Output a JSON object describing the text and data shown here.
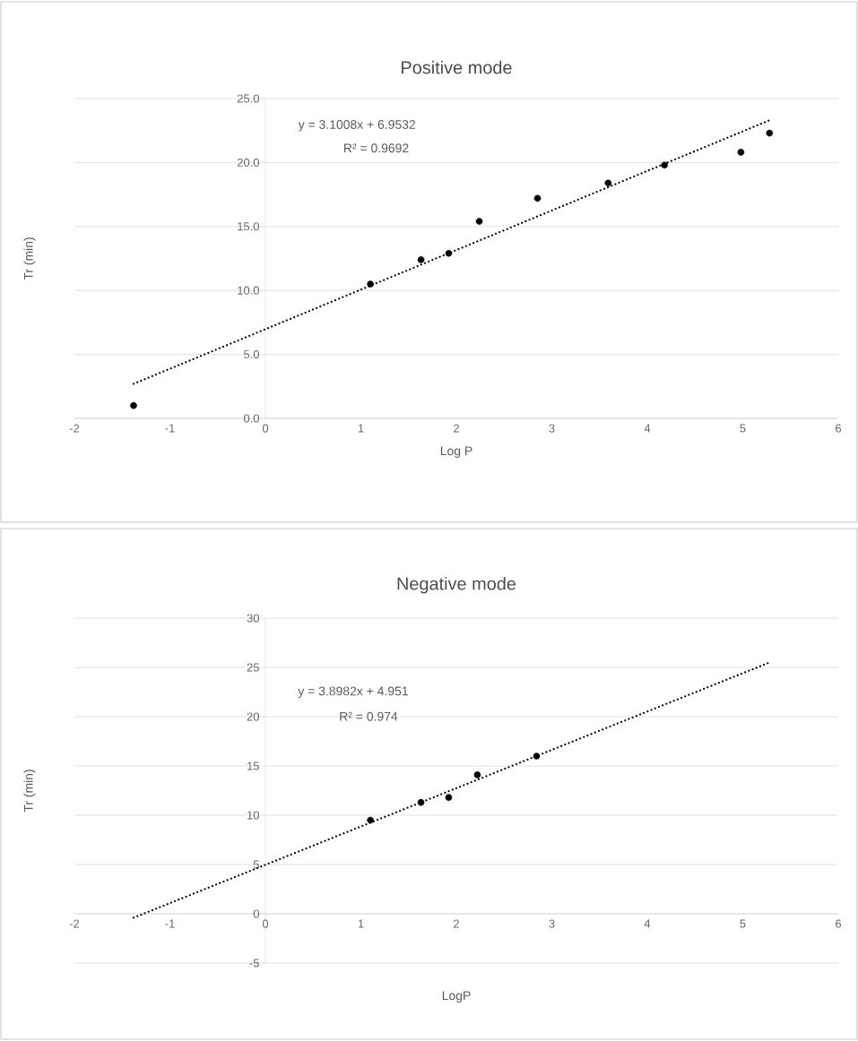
{
  "chart_data": [
    {
      "type": "scatter",
      "title": "Positive mode",
      "xlabel": "Log P",
      "ylabel": "Tr (min)",
      "annotations": [
        "y = 3.1008x + 6.9532",
        "R² = 0.9692"
      ],
      "series": [
        {
          "color": "#000000",
          "marker": "circle",
          "x": [
            -1.38,
            1.1,
            1.63,
            1.92,
            2.24,
            2.85,
            3.59,
            4.18,
            4.98,
            5.28
          ],
          "values": [
            1.0,
            10.5,
            12.4,
            12.9,
            15.4,
            17.2,
            18.4,
            19.8,
            20.8,
            22.3
          ]
        },
        {
          "type": "line",
          "color": "#000000",
          "marker": "none",
          "line_style": "dotted",
          "x": [
            -1.38,
            5.28
          ],
          "values": [
            2.7,
            23.3
          ]
        }
      ],
      "xlim": [
        -2,
        6
      ],
      "xticks": [
        -2,
        -1,
        0,
        1,
        2,
        3,
        4,
        5,
        6
      ],
      "ylim": [
        0,
        25
      ],
      "yticks": [
        {
          "value": 0,
          "label": "0.0"
        },
        {
          "value": 5,
          "label": "5.0"
        },
        {
          "value": 10,
          "label": "10.0"
        },
        {
          "value": 15,
          "label": "15.0"
        },
        {
          "value": 20,
          "label": "20.0"
        },
        {
          "value": 25,
          "label": "25.0"
        }
      ],
      "grid": "y"
    },
    {
      "type": "scatter",
      "title": "Negative mode",
      "xlabel": "LogP",
      "ylabel": "Tr (min)",
      "annotations": [
        "y = 3.8982x + 4.951",
        "R² = 0.974"
      ],
      "series": [
        {
          "color": "#000000",
          "marker": "circle",
          "x": [
            1.1,
            1.63,
            1.92,
            2.22,
            2.84
          ],
          "values": [
            9.5,
            11.3,
            11.8,
            14.1,
            16.0
          ]
        },
        {
          "type": "line",
          "color": "#000000",
          "marker": "none",
          "line_style": "dotted",
          "x": [
            -1.38,
            5.28
          ],
          "values": [
            -0.4,
            25.5
          ]
        }
      ],
      "xlim": [
        -2,
        6
      ],
      "xticks": [
        -2,
        -1,
        0,
        1,
        2,
        3,
        4,
        5,
        6
      ],
      "ylim": [
        -5,
        30
      ],
      "yticks": [
        -5,
        0,
        5,
        10,
        15,
        20,
        25,
        30
      ],
      "grid": "y"
    }
  ]
}
